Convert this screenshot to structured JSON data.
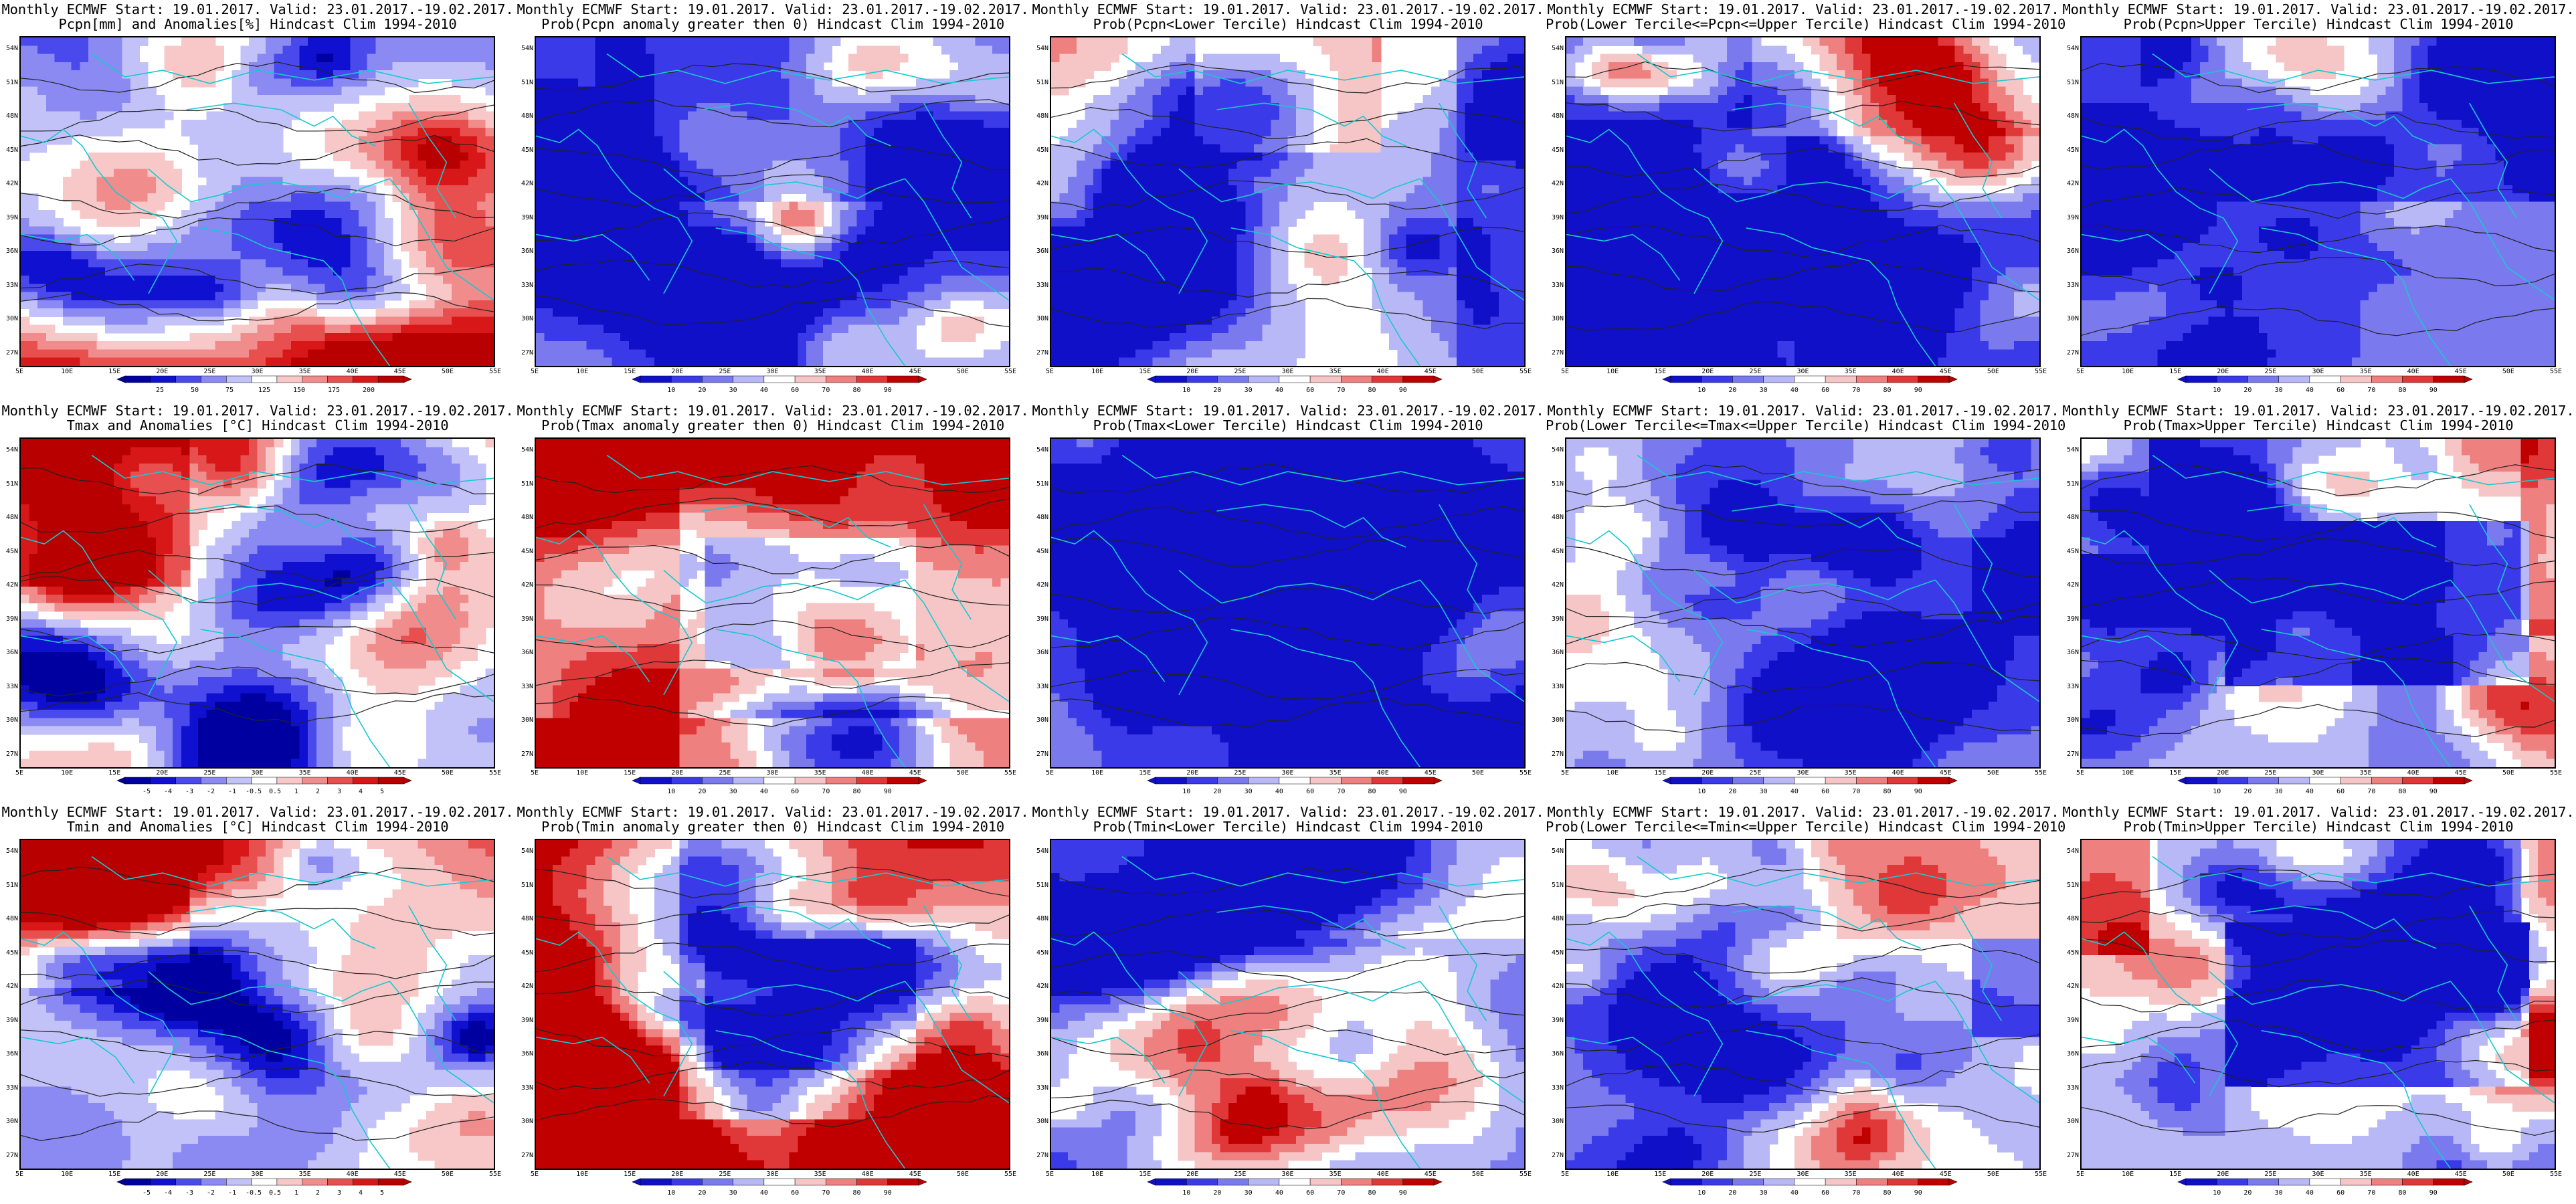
{
  "figure": {
    "panels": [
      {
        "title1": "Monthly ECMWF Start: 19.01.2017. Valid: 23.01.2017.-19.02.2017.",
        "title2": "Pcpn[mm] and Anomalies[%] Hindcast Clim 1994-2010",
        "scheme": "anom",
        "colorbar": {
          "labels": [
            "25",
            "50",
            "75",
            "125",
            "150",
            "175",
            "200"
          ]
        }
      },
      {
        "title1": "Monthly ECMWF Start: 19.01.2017. Valid: 23.01.2017.-19.02.2017.",
        "title2": "Prob(Pcpn anomaly greater then 0) Hindcast Clim 1994-2010",
        "scheme": "blue",
        "colorbar": {
          "labels": [
            "10",
            "20",
            "30",
            "40",
            "60",
            "70",
            "80",
            "90"
          ]
        }
      },
      {
        "title1": "Monthly ECMWF Start: 19.01.2017. Valid: 23.01.2017.-19.02.2017.",
        "title2": "Prob(Pcpn<Lower Tercile) Hindcast Clim 1994-2010",
        "scheme": "mixed",
        "colorbar": {
          "labels": [
            "10",
            "20",
            "30",
            "40",
            "60",
            "70",
            "80",
            "90"
          ]
        }
      },
      {
        "title1": "Monthly ECMWF Start: 19.01.2017. Valid: 23.01.2017.-19.02.2017.",
        "title2": "Prob(Lower Tercile<=Pcpn<=Upper Tercile) Hindcast Clim 1994-2010",
        "scheme": "deepblue",
        "colorbar": {
          "labels": [
            "10",
            "20",
            "30",
            "40",
            "60",
            "70",
            "80",
            "90"
          ]
        }
      },
      {
        "title1": "Monthly ECMWF Start: 19.01.2017. Valid: 23.01.2017.-19.02.2017.",
        "title2": "Prob(Pcpn>Upper Tercile) Hindcast Clim 1994-2010",
        "scheme": "blue",
        "colorbar": {
          "labels": [
            "10",
            "20",
            "30",
            "40",
            "60",
            "70",
            "80",
            "90"
          ]
        }
      },
      {
        "title1": "Monthly ECMWF Start: 19.01.2017. Valid: 23.01.2017.-19.02.2017.",
        "title2": "Tmax and Anomalies [°C] Hindcast Clim 1994-2010",
        "scheme": "warm",
        "colorbar": {
          "labels": [
            "-5",
            "-4",
            "-3",
            "-2",
            "-1",
            "-0.5",
            "0.5",
            "1",
            "2",
            "3",
            "4",
            "5"
          ]
        }
      },
      {
        "title1": "Monthly ECMWF Start: 19.01.2017. Valid: 23.01.2017.-19.02.2017.",
        "title2": "Prob(Tmax anomaly greater then 0) Hindcast Clim 1994-2010",
        "scheme": "red",
        "colorbar": {
          "labels": [
            "10",
            "20",
            "30",
            "40",
            "60",
            "70",
            "80",
            "90"
          ]
        }
      },
      {
        "title1": "Monthly ECMWF Start: 19.01.2017. Valid: 23.01.2017.-19.02.2017.",
        "title2": "Prob(Tmax<Lower Tercile) Hindcast Clim 1994-2010",
        "scheme": "deepblue",
        "colorbar": {
          "labels": [
            "10",
            "20",
            "30",
            "40",
            "60",
            "70",
            "80",
            "90"
          ]
        }
      },
      {
        "title1": "Monthly ECMWF Start: 19.01.2017. Valid: 23.01.2017.-19.02.2017.",
        "title2": "Prob(Lower Tercile<=Tmax<=Upper Tercile) Hindcast Clim 1994-2010",
        "scheme": "light",
        "colorbar": {
          "labels": [
            "10",
            "20",
            "30",
            "40",
            "60",
            "70",
            "80",
            "90"
          ]
        }
      },
      {
        "title1": "Monthly ECMWF Start: 19.01.2017. Valid: 23.01.2017.-19.02.2017.",
        "title2": "Prob(Tmax>Upper Tercile) Hindcast Clim 1994-2010",
        "scheme": "bluecore",
        "colorbar": {
          "labels": [
            "10",
            "20",
            "30",
            "40",
            "60",
            "70",
            "80",
            "90"
          ]
        }
      },
      {
        "title1": "Monthly ECMWF Start: 19.01.2017. Valid: 23.01.2017.-19.02.2017.",
        "title2": "Tmin and Anomalies [°C] Hindcast Clim 1994-2010",
        "scheme": "warm",
        "colorbar": {
          "labels": [
            "-5",
            "-4",
            "-3",
            "-2",
            "-1",
            "-0.5",
            "0.5",
            "1",
            "2",
            "3",
            "4",
            "5"
          ]
        }
      },
      {
        "title1": "Monthly ECMWF Start: 19.01.2017. Valid: 23.01.2017.-19.02.2017.",
        "title2": "Prob(Tmin anomaly greater then 0) Hindcast Clim 1994-2010",
        "scheme": "red",
        "colorbar": {
          "labels": [
            "10",
            "20",
            "30",
            "40",
            "60",
            "70",
            "80",
            "90"
          ]
        }
      },
      {
        "title1": "Monthly ECMWF Start: 19.01.2017. Valid: 23.01.2017.-19.02.2017.",
        "title2": "Prob(Tmin<Lower Tercile) Hindcast Clim 1994-2010",
        "scheme": "deepblue",
        "colorbar": {
          "labels": [
            "10",
            "20",
            "30",
            "40",
            "60",
            "70",
            "80",
            "90"
          ]
        }
      },
      {
        "title1": "Monthly ECMWF Start: 19.01.2017. Valid: 23.01.2017.-19.02.2017.",
        "title2": "Prob(Lower Tercile<=Tmin<=Upper Tercile) Hindcast Clim 1994-2010",
        "scheme": "light",
        "colorbar": {
          "labels": [
            "10",
            "20",
            "30",
            "40",
            "60",
            "70",
            "80",
            "90"
          ]
        }
      },
      {
        "title1": "Monthly ECMWF Start: 19.01.2017. Valid: 23.01.2017.-19.02.2017.",
        "title2": "Prob(Tmin>Upper Tercile) Hindcast Clim 1994-2010",
        "scheme": "bluecore",
        "colorbar": {
          "labels": [
            "10",
            "20",
            "30",
            "40",
            "60",
            "70",
            "80",
            "90"
          ]
        }
      }
    ],
    "lat_labels": [
      "54N",
      "51N",
      "48N",
      "45N",
      "42N",
      "39N",
      "36N",
      "33N",
      "30N",
      "27N"
    ],
    "lon_labels": [
      "5E",
      "10E",
      "15E",
      "20E",
      "25E",
      "30E",
      "35E",
      "40E",
      "45E",
      "50E",
      "55E"
    ],
    "colors": {
      "coastline": "#18c8d0",
      "contour": "#222222",
      "prob_palette": [
        "#1010c8",
        "#3a3ae8",
        "#7a7aee",
        "#b8b8f6",
        "#ffffff",
        "#f6c6c6",
        "#ee8080",
        "#e03838",
        "#c00000"
      ],
      "anom_palette": [
        "#0000a0",
        "#1010d0",
        "#4a4aec",
        "#8a8af2",
        "#c2c2f8",
        "#ffffff",
        "#f8c8c8",
        "#f08c8c",
        "#e85050",
        "#d81818",
        "#b80000"
      ]
    }
  }
}
